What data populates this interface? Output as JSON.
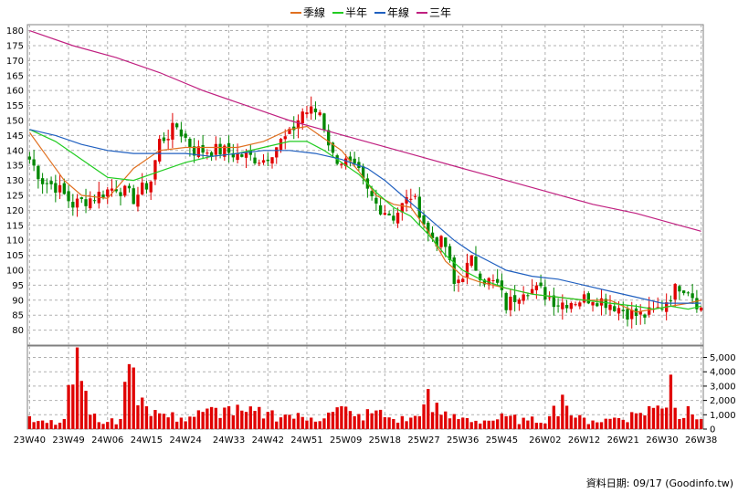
{
  "chart_data": {
    "type": "candlestick",
    "legend": [
      {
        "name": "季線",
        "color": "#e07020"
      },
      {
        "name": "半年",
        "color": "#22cc22"
      },
      {
        "name": "年線",
        "color": "#2060c0"
      },
      {
        "name": "三年",
        "color": "#c02080"
      }
    ],
    "legend_position": "top-center",
    "grid": true,
    "price_axis": {
      "ylim": [
        75,
        182
      ],
      "ticks": [
        "180",
        "175",
        "170",
        "165",
        "160",
        "155",
        "150",
        "145",
        "140",
        "135",
        "130",
        "125",
        "120",
        "115",
        "110",
        "105",
        "100",
        "95",
        "90",
        "85",
        "80"
      ]
    },
    "volume_axis": {
      "ylim": [
        0,
        5800
      ],
      "ticks": [
        "5,000",
        "4,000",
        "3,000",
        "2,000",
        "1,000",
        "0"
      ]
    },
    "x_ticks": [
      "23W40",
      "23W49",
      "24W06",
      "24W15",
      "24W24",
      "24W33",
      "24W42",
      "24W51",
      "25W09",
      "25W18",
      "25W27",
      "25W36",
      "25W45",
      "26W02",
      "26W12",
      "26W21",
      "26W30",
      "26W38"
    ],
    "bar_count": 156,
    "anchors": [
      [
        0,
        137
      ],
      [
        3,
        130
      ],
      [
        6,
        128
      ],
      [
        10,
        122
      ],
      [
        14,
        124
      ],
      [
        20,
        128
      ],
      [
        24,
        124
      ],
      [
        28,
        130
      ],
      [
        30,
        143
      ],
      [
        34,
        148
      ],
      [
        38,
        140
      ],
      [
        44,
        140
      ],
      [
        50,
        138
      ],
      [
        54,
        137
      ],
      [
        58,
        143
      ],
      [
        60,
        145
      ],
      [
        63,
        153
      ],
      [
        67,
        153
      ],
      [
        70,
        138
      ],
      [
        73,
        136
      ],
      [
        76,
        132
      ],
      [
        78,
        126
      ],
      [
        80,
        122
      ],
      [
        84,
        118
      ],
      [
        88,
        125
      ],
      [
        90,
        120
      ],
      [
        92,
        112
      ],
      [
        96,
        108
      ],
      [
        98,
        95
      ],
      [
        102,
        103
      ],
      [
        105,
        97
      ],
      [
        108,
        95
      ],
      [
        110,
        88
      ],
      [
        114,
        94
      ],
      [
        118,
        93
      ],
      [
        122,
        89
      ],
      [
        126,
        90
      ],
      [
        130,
        91
      ],
      [
        134,
        89
      ],
      [
        138,
        86
      ],
      [
        140,
        85
      ],
      [
        142,
        85
      ],
      [
        144,
        86
      ],
      [
        146,
        88
      ],
      [
        148,
        92
      ],
      [
        150,
        95
      ],
      [
        152,
        94
      ],
      [
        155,
        87
      ]
    ],
    "volume_anchors": [
      [
        0,
        900
      ],
      [
        3,
        600
      ],
      [
        8,
        700
      ],
      [
        11,
        5700
      ],
      [
        14,
        1000
      ],
      [
        18,
        500
      ],
      [
        21,
        700
      ],
      [
        22,
        3300
      ],
      [
        24,
        4300
      ],
      [
        26,
        2200
      ],
      [
        30,
        1100
      ],
      [
        35,
        800
      ],
      [
        40,
        1200
      ],
      [
        45,
        1500
      ],
      [
        50,
        1200
      ],
      [
        55,
        1200
      ],
      [
        60,
        1000
      ],
      [
        65,
        800
      ],
      [
        70,
        1200
      ],
      [
        72,
        1600
      ],
      [
        75,
        900
      ],
      [
        80,
        1300
      ],
      [
        84,
        700
      ],
      [
        88,
        800
      ],
      [
        90,
        900
      ],
      [
        92,
        2800
      ],
      [
        95,
        1000
      ],
      [
        100,
        800
      ],
      [
        105,
        600
      ],
      [
        110,
        900
      ],
      [
        115,
        600
      ],
      [
        120,
        900
      ],
      [
        123,
        2400
      ],
      [
        126,
        800
      ],
      [
        130,
        600
      ],
      [
        135,
        800
      ],
      [
        140,
        1100
      ],
      [
        143,
        1600
      ],
      [
        147,
        1500
      ],
      [
        148,
        3800
      ],
      [
        150,
        700
      ],
      [
        152,
        1600
      ],
      [
        155,
        700
      ]
    ],
    "ma_series": [
      {
        "name": "季線",
        "points": [
          [
            0,
            146
          ],
          [
            4,
            138
          ],
          [
            8,
            130
          ],
          [
            12,
            125
          ],
          [
            18,
            124
          ],
          [
            24,
            134
          ],
          [
            30,
            140
          ],
          [
            36,
            141
          ],
          [
            42,
            141
          ],
          [
            48,
            141
          ],
          [
            54,
            143
          ],
          [
            60,
            147
          ],
          [
            64,
            148
          ],
          [
            68,
            144
          ],
          [
            72,
            140
          ],
          [
            76,
            133
          ],
          [
            80,
            125
          ],
          [
            84,
            122
          ],
          [
            88,
            121
          ],
          [
            92,
            113
          ],
          [
            96,
            103
          ],
          [
            100,
            98
          ],
          [
            104,
            96
          ],
          [
            110,
            94
          ],
          [
            116,
            92
          ],
          [
            122,
            91
          ],
          [
            128,
            90
          ],
          [
            134,
            90
          ],
          [
            140,
            86
          ],
          [
            144,
            87
          ],
          [
            148,
            88
          ],
          [
            152,
            89
          ],
          [
            155,
            90
          ]
        ]
      },
      {
        "name": "半年",
        "points": [
          [
            0,
            147
          ],
          [
            6,
            143
          ],
          [
            12,
            137
          ],
          [
            18,
            131
          ],
          [
            24,
            130
          ],
          [
            30,
            133
          ],
          [
            36,
            136
          ],
          [
            42,
            138
          ],
          [
            48,
            139
          ],
          [
            54,
            141
          ],
          [
            60,
            143
          ],
          [
            64,
            143
          ],
          [
            68,
            140
          ],
          [
            72,
            136
          ],
          [
            76,
            132
          ],
          [
            80,
            126
          ],
          [
            84,
            121
          ],
          [
            88,
            118
          ],
          [
            92,
            112
          ],
          [
            96,
            105
          ],
          [
            100,
            100
          ],
          [
            104,
            97
          ],
          [
            110,
            94
          ],
          [
            116,
            92
          ],
          [
            122,
            91
          ],
          [
            128,
            90
          ],
          [
            134,
            89
          ],
          [
            140,
            88
          ],
          [
            144,
            87
          ],
          [
            148,
            88
          ],
          [
            152,
            87
          ],
          [
            155,
            88
          ]
        ]
      },
      {
        "name": "年線",
        "points": [
          [
            0,
            147
          ],
          [
            6,
            145
          ],
          [
            12,
            142
          ],
          [
            18,
            140
          ],
          [
            24,
            139
          ],
          [
            30,
            139
          ],
          [
            36,
            139
          ],
          [
            42,
            138
          ],
          [
            48,
            139
          ],
          [
            54,
            140
          ],
          [
            60,
            140
          ],
          [
            66,
            139
          ],
          [
            72,
            137
          ],
          [
            78,
            134
          ],
          [
            82,
            130
          ],
          [
            86,
            125
          ],
          [
            90,
            120
          ],
          [
            94,
            115
          ],
          [
            98,
            110
          ],
          [
            102,
            106
          ],
          [
            106,
            103
          ],
          [
            110,
            100
          ],
          [
            116,
            98
          ],
          [
            122,
            97
          ],
          [
            128,
            95
          ],
          [
            134,
            93
          ],
          [
            140,
            91
          ],
          [
            146,
            89
          ],
          [
            150,
            89
          ],
          [
            155,
            89
          ]
        ]
      },
      {
        "name": "三年",
        "points": [
          [
            0,
            180
          ],
          [
            10,
            175
          ],
          [
            20,
            171
          ],
          [
            30,
            166
          ],
          [
            40,
            160
          ],
          [
            50,
            155
          ],
          [
            60,
            150
          ],
          [
            70,
            146
          ],
          [
            80,
            142
          ],
          [
            90,
            138
          ],
          [
            100,
            134
          ],
          [
            110,
            130
          ],
          [
            120,
            126
          ],
          [
            130,
            122
          ],
          [
            140,
            119
          ],
          [
            150,
            115
          ],
          [
            155,
            113
          ]
        ]
      }
    ]
  },
  "footer": {
    "note": "資料日期: 09/17  (Goodinfo.tw)"
  }
}
